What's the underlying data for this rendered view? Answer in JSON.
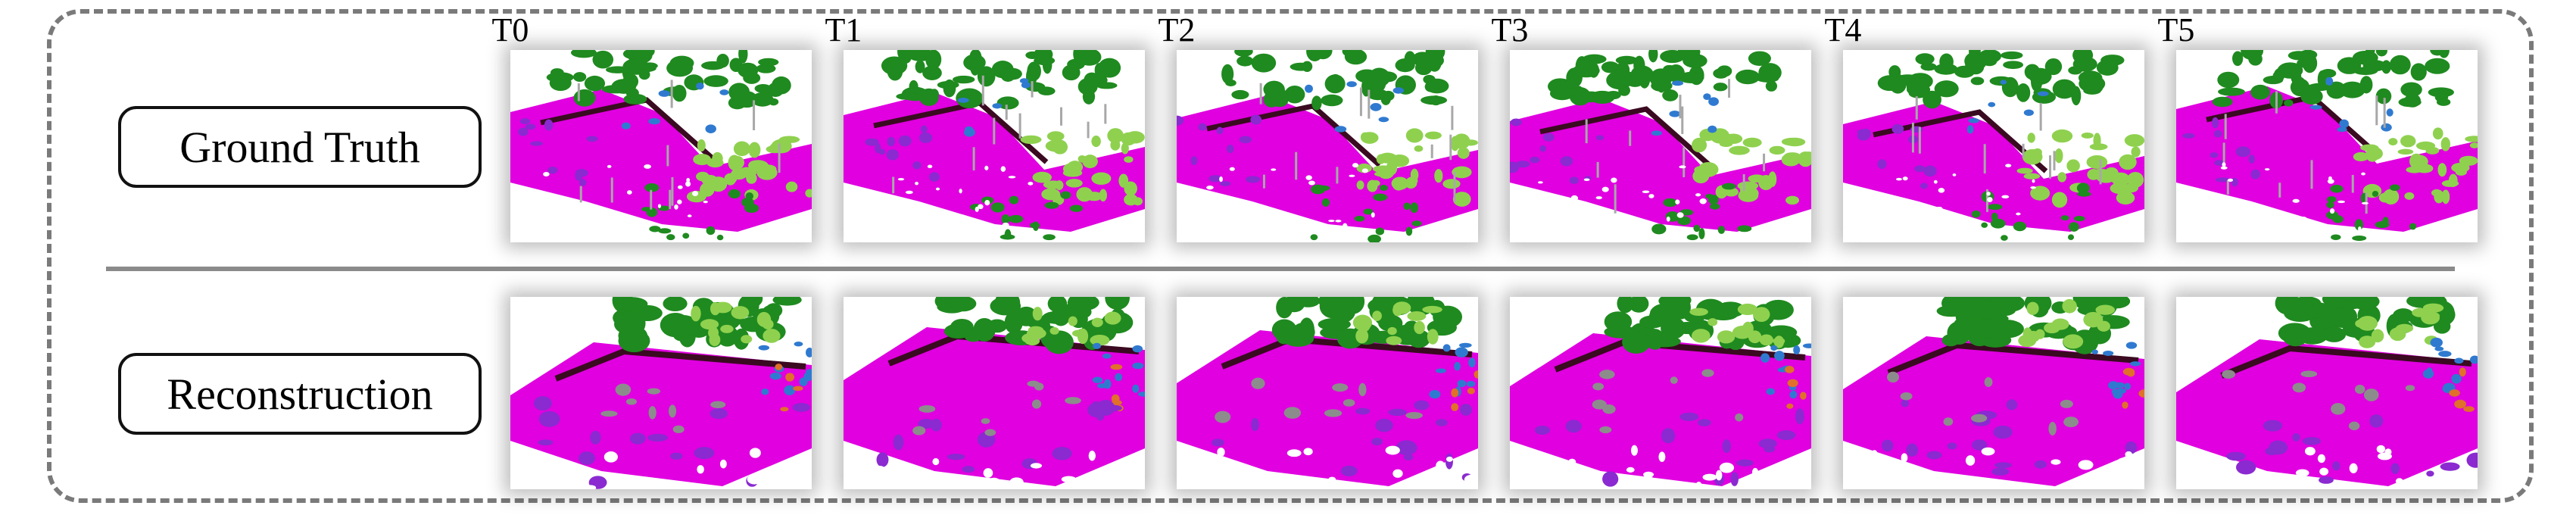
{
  "columns": [
    "T0",
    "T1",
    "T2",
    "T3",
    "T4",
    "T5"
  ],
  "rows": [
    {
      "label": "Ground Truth"
    },
    {
      "label": "Reconstruction"
    }
  ],
  "colors": {
    "road": "#e000e0",
    "vegetation": "#1f8a1f",
    "terrain": "#8fd14f",
    "curb": "#3a0a20",
    "pole": "#a8a8a8",
    "vehicle": "#2f7ad0",
    "barrier": "#e0702a",
    "sidewalk": "#8a2ad0"
  }
}
